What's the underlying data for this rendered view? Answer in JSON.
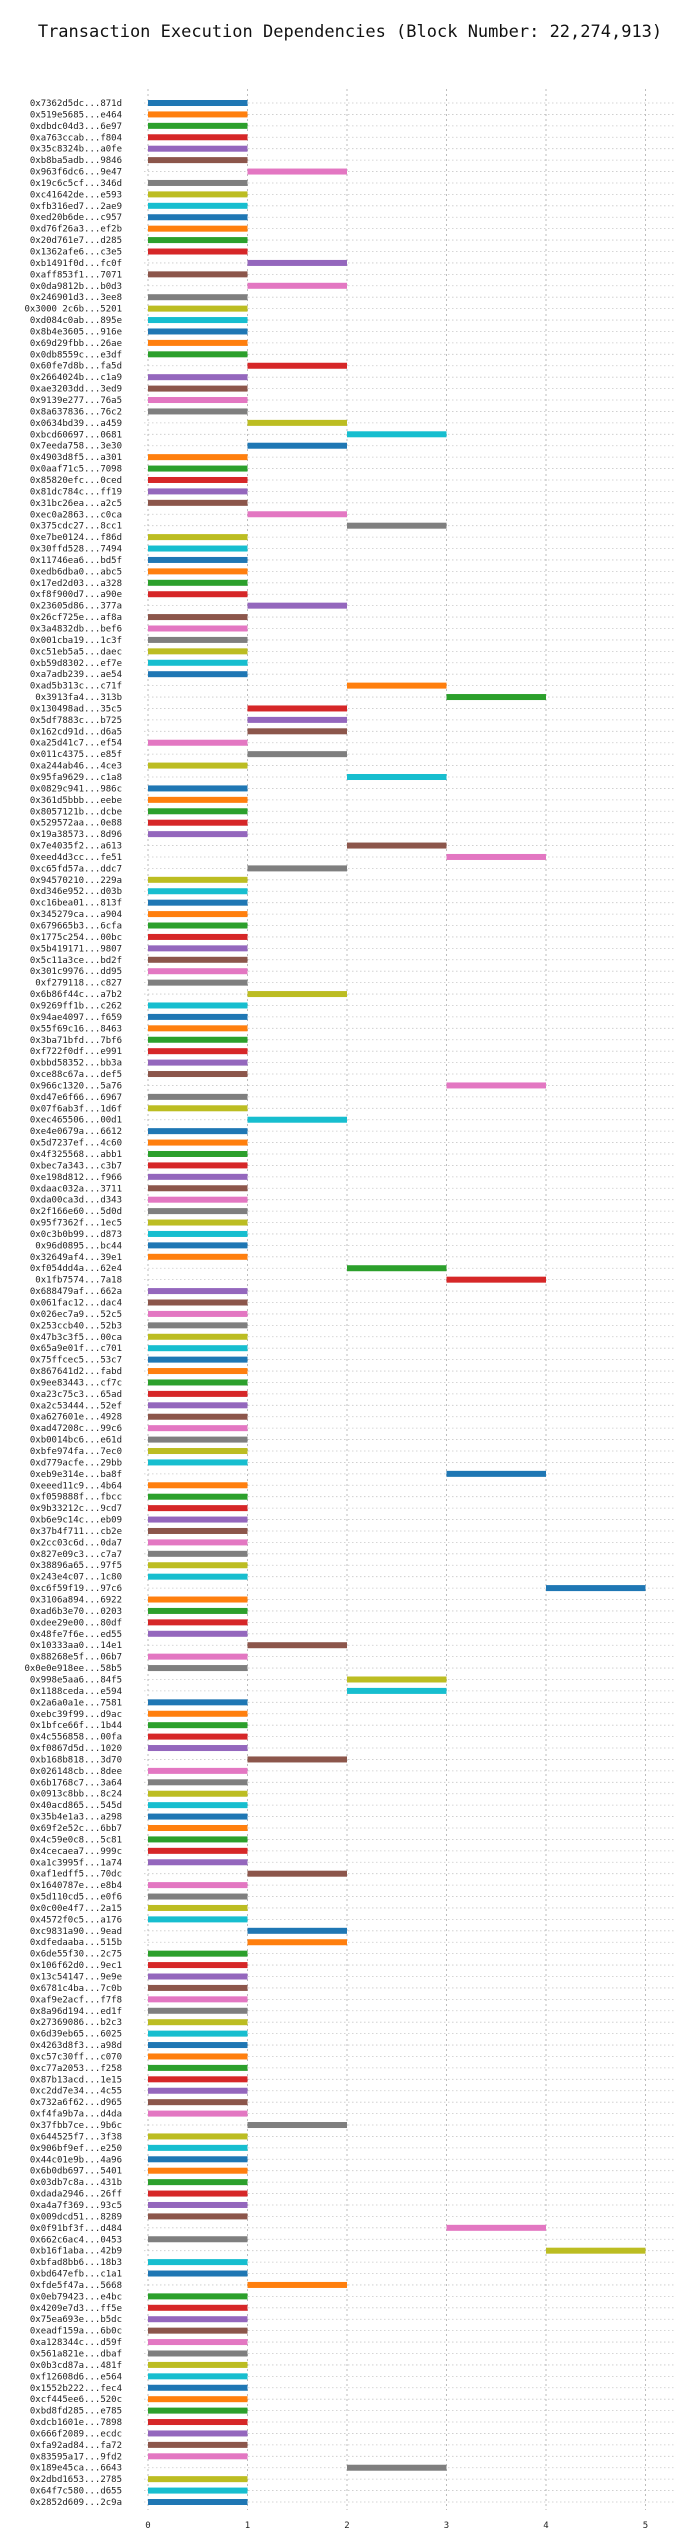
{
  "chart_data": {
    "type": "bar",
    "title": "Transaction Execution Dependencies (Block Number: 22,274,913)",
    "xlabel": "",
    "ylabel": "",
    "xlim": [
      0,
      5.3
    ],
    "x_ticks": [
      "0",
      "1",
      "2",
      "3",
      "4",
      "5"
    ],
    "grid": true,
    "palette": [
      "#1f77b4",
      "#ff7f0e",
      "#2ca02c",
      "#d62728",
      "#9467bd",
      "#8c564b",
      "#e377c2",
      "#7f7f7f",
      "#bcbd22",
      "#17becf"
    ],
    "transactions": [
      {
        "label": "0x7362d5dc...871d",
        "start": 0,
        "end": 1
      },
      {
        "label": "0x519e5685...e464",
        "start": 0,
        "end": 1
      },
      {
        "label": "0xdbdc04d3...6e97",
        "start": 0,
        "end": 1
      },
      {
        "label": "0xa763ccab...f804",
        "start": 0,
        "end": 1
      },
      {
        "label": "0x35c8324b...a0fe",
        "start": 0,
        "end": 1
      },
      {
        "label": "0xb8ba5adb...9846",
        "start": 0,
        "end": 1
      },
      {
        "label": "0x963f6dc6...9e47",
        "start": 1,
        "end": 2
      },
      {
        "label": "0x19c6c5cf...346d",
        "start": 0,
        "end": 1
      },
      {
        "label": "0xc41642de...e593",
        "start": 0,
        "end": 1
      },
      {
        "label": "0xfb316ed7...2ae9",
        "start": 0,
        "end": 1
      },
      {
        "label": "0xed20b6de...c957",
        "start": 0,
        "end": 1
      },
      {
        "label": "0xd76f26a3...ef2b",
        "start": 0,
        "end": 1
      },
      {
        "label": "0x20d761e7...d285",
        "start": 0,
        "end": 1
      },
      {
        "label": "0x1362afe6...c3e5",
        "start": 0,
        "end": 1
      },
      {
        "label": "0xb1491f0d...fc0f",
        "start": 1,
        "end": 2
      },
      {
        "label": "0xaff853f1...7071",
        "start": 0,
        "end": 1
      },
      {
        "label": "0x0da9812b...b0d3",
        "start": 1,
        "end": 2
      },
      {
        "label": "0x246901d3...3ee8",
        "start": 0,
        "end": 1
      },
      {
        "label": "0x3000 2c6b...5201",
        "start": 0,
        "end": 1
      },
      {
        "label": "0xd084c0ab...895e",
        "start": 0,
        "end": 1
      },
      {
        "label": "0x8b4e3605...916e",
        "start": 0,
        "end": 1
      },
      {
        "label": "0x69d29fbb...26ae",
        "start": 0,
        "end": 1
      },
      {
        "label": "0x0db8559c...e3df",
        "start": 0,
        "end": 1
      },
      {
        "label": "0x60fe7d8b...fa5d",
        "start": 1,
        "end": 2
      },
      {
        "label": "0x2664024b...c1a9",
        "start": 0,
        "end": 1
      },
      {
        "label": "0xae3203dd...3ed9",
        "start": 0,
        "end": 1
      },
      {
        "label": "0x9139e277...76a5",
        "start": 0,
        "end": 1
      },
      {
        "label": "0x8a637836...76c2",
        "start": 0,
        "end": 1
      },
      {
        "label": "0x0634bd39...a459",
        "start": 1,
        "end": 2
      },
      {
        "label": "0xbcd60697...0681",
        "start": 2,
        "end": 3
      },
      {
        "label": "0x7eeda758...3e30",
        "start": 1,
        "end": 2
      },
      {
        "label": "0x4903d8f5...a301",
        "start": 0,
        "end": 1
      },
      {
        "label": "0x0aaf71c5...7098",
        "start": 0,
        "end": 1
      },
      {
        "label": "0x85820efc...0ced",
        "start": 0,
        "end": 1
      },
      {
        "label": "0x81dc784c...ff19",
        "start": 0,
        "end": 1
      },
      {
        "label": "0x31bc26ea...a2c5",
        "start": 0,
        "end": 1
      },
      {
        "label": "0xec0a2863...c0ca",
        "start": 1,
        "end": 2
      },
      {
        "label": "0x375cdc27...8cc1",
        "start": 2,
        "end": 3
      },
      {
        "label": "0xe7be0124...f86d",
        "start": 0,
        "end": 1
      },
      {
        "label": "0x30ffd528...7494",
        "start": 0,
        "end": 1
      },
      {
        "label": "0x11746ea6...bd5f",
        "start": 0,
        "end": 1
      },
      {
        "label": "0xedb6dba0...abc5",
        "start": 0,
        "end": 1
      },
      {
        "label": "0x17ed2d03...a328",
        "start": 0,
        "end": 1
      },
      {
        "label": "0xf8f900d7...a90e",
        "start": 0,
        "end": 1
      },
      {
        "label": "0x23605d86...377a",
        "start": 1,
        "end": 2
      },
      {
        "label": "0x26cf725e...af8a",
        "start": 0,
        "end": 1
      },
      {
        "label": "0x3a4832db...bef6",
        "start": 0,
        "end": 1
      },
      {
        "label": "0x001cba19...1c3f",
        "start": 0,
        "end": 1
      },
      {
        "label": "0xc51eb5a5...daec",
        "start": 0,
        "end": 1
      },
      {
        "label": "0xb59d8302...ef7e",
        "start": 0,
        "end": 1
      },
      {
        "label": "0xa7adb239...ae54",
        "start": 0,
        "end": 1
      },
      {
        "label": "0xad5b313c...c71f",
        "start": 2,
        "end": 3
      },
      {
        "label": "0x3913fa4...313b",
        "start": 3,
        "end": 4
      },
      {
        "label": "0x130498ad...35c5",
        "start": 1,
        "end": 2
      },
      {
        "label": "0x5df7883c...b725",
        "start": 1,
        "end": 2
      },
      {
        "label": "0x162cd91d...d6a5",
        "start": 1,
        "end": 2
      },
      {
        "label": "0xa25d41c7...ef54",
        "start": 0,
        "end": 1
      },
      {
        "label": "0x011c4375...e85f",
        "start": 1,
        "end": 2
      },
      {
        "label": "0xa244ab46...4ce3",
        "start": 0,
        "end": 1
      },
      {
        "label": "0x95fa9629...c1a8",
        "start": 2,
        "end": 3
      },
      {
        "label": "0x0829c941...986c",
        "start": 0,
        "end": 1
      },
      {
        "label": "0x361d5bbb...eebe",
        "start": 0,
        "end": 1
      },
      {
        "label": "0x8057121b...dcbe",
        "start": 0,
        "end": 1
      },
      {
        "label": "0x529572aa...0e88",
        "start": 0,
        "end": 1
      },
      {
        "label": "0x19a38573...8d96",
        "start": 0,
        "end": 1
      },
      {
        "label": "0x7e4035f2...a613",
        "start": 2,
        "end": 3
      },
      {
        "label": "0xeed4d3cc...fe51",
        "start": 3,
        "end": 4
      },
      {
        "label": "0xc65fd57a...ddc7",
        "start": 1,
        "end": 2
      },
      {
        "label": "0x94570210...229a",
        "start": 0,
        "end": 1
      },
      {
        "label": "0xd346e952...d03b",
        "start": 0,
        "end": 1
      },
      {
        "label": "0xc16bea01...813f",
        "start": 0,
        "end": 1
      },
      {
        "label": "0x345279ca...a904",
        "start": 0,
        "end": 1
      },
      {
        "label": "0x679665b3...6cfa",
        "start": 0,
        "end": 1
      },
      {
        "label": "0x1775c254...00bc",
        "start": 0,
        "end": 1
      },
      {
        "label": "0x5b419171...9807",
        "start": 0,
        "end": 1
      },
      {
        "label": "0x5c11a3ce...bd2f",
        "start": 0,
        "end": 1
      },
      {
        "label": "0x301c9976...dd95",
        "start": 0,
        "end": 1
      },
      {
        "label": "0xf279118...c827",
        "start": 0,
        "end": 1
      },
      {
        "label": "0x6b86f44c...a7b2",
        "start": 1,
        "end": 2
      },
      {
        "label": "0x9269ff1b...c262",
        "start": 0,
        "end": 1
      },
      {
        "label": "0x94ae4097...f659",
        "start": 0,
        "end": 1
      },
      {
        "label": "0x55f69c16...8463",
        "start": 0,
        "end": 1
      },
      {
        "label": "0x3ba71bfd...7bf6",
        "start": 0,
        "end": 1
      },
      {
        "label": "0xf722f0df...e991",
        "start": 0,
        "end": 1
      },
      {
        "label": "0xbbd58352...bb3a",
        "start": 0,
        "end": 1
      },
      {
        "label": "0xce88c67a...def5",
        "start": 0,
        "end": 1
      },
      {
        "label": "0x966c1320...5a76",
        "start": 3,
        "end": 4
      },
      {
        "label": "0xd47e6f66...6967",
        "start": 0,
        "end": 1
      },
      {
        "label": "0x07f6ab3f...1d6f",
        "start": 0,
        "end": 1
      },
      {
        "label": "0xec465506...00d1",
        "start": 1,
        "end": 2
      },
      {
        "label": "0xe4e0679a...6612",
        "start": 0,
        "end": 1
      },
      {
        "label": "0x5d7237ef...4c60",
        "start": 0,
        "end": 1
      },
      {
        "label": "0x4f325568...abb1",
        "start": 0,
        "end": 1
      },
      {
        "label": "0xbec7a343...c3b7",
        "start": 0,
        "end": 1
      },
      {
        "label": "0xe198d812...f966",
        "start": 0,
        "end": 1
      },
      {
        "label": "0xdaac032a...3711",
        "start": 0,
        "end": 1
      },
      {
        "label": "0xda00ca3d...d343",
        "start": 0,
        "end": 1
      },
      {
        "label": "0x2f166e60...5d0d",
        "start": 0,
        "end": 1
      },
      {
        "label": "0x95f7362f...1ec5",
        "start": 0,
        "end": 1
      },
      {
        "label": "0x0c3b0b99...d873",
        "start": 0,
        "end": 1
      },
      {
        "label": "0x96d0895...bc44",
        "start": 0,
        "end": 1
      },
      {
        "label": "0x32649af4...39e1",
        "start": 0,
        "end": 1
      },
      {
        "label": "0xf054dd4a...62e4",
        "start": 2,
        "end": 3
      },
      {
        "label": "0x1fb7574...7a18",
        "start": 3,
        "end": 4
      },
      {
        "label": "0x688479af...662a",
        "start": 0,
        "end": 1
      },
      {
        "label": "0x061fac12...dac4",
        "start": 0,
        "end": 1
      },
      {
        "label": "0x026ec7a9...52c5",
        "start": 0,
        "end": 1
      },
      {
        "label": "0x253ccb40...52b3",
        "start": 0,
        "end": 1
      },
      {
        "label": "0x47b3c3f5...00ca",
        "start": 0,
        "end": 1
      },
      {
        "label": "0x65a9e01f...c701",
        "start": 0,
        "end": 1
      },
      {
        "label": "0x75ffcec5...53c7",
        "start": 0,
        "end": 1
      },
      {
        "label": "0x867641d2...fabd",
        "start": 0,
        "end": 1
      },
      {
        "label": "0x9ee83443...cf7c",
        "start": 0,
        "end": 1
      },
      {
        "label": "0xa23c75c3...65ad",
        "start": 0,
        "end": 1
      },
      {
        "label": "0xa2c53444...52ef",
        "start": 0,
        "end": 1
      },
      {
        "label": "0xa627601e...4928",
        "start": 0,
        "end": 1
      },
      {
        "label": "0xad47208c...99c6",
        "start": 0,
        "end": 1
      },
      {
        "label": "0xb0014bc6...e61d",
        "start": 0,
        "end": 1
      },
      {
        "label": "0xbfe974fa...7ec0",
        "start": 0,
        "end": 1
      },
      {
        "label": "0xd779acfe...29bb",
        "start": 0,
        "end": 1
      },
      {
        "label": "0xeb9e314e...ba8f",
        "start": 3,
        "end": 4
      },
      {
        "label": "0xeeed11c9...4b64",
        "start": 0,
        "end": 1
      },
      {
        "label": "0xf059888f...fbcc",
        "start": 0,
        "end": 1
      },
      {
        "label": "0x9b33212c...9cd7",
        "start": 0,
        "end": 1
      },
      {
        "label": "0xb6e9c14c...eb09",
        "start": 0,
        "end": 1
      },
      {
        "label": "0x37b4f711...cb2e",
        "start": 0,
        "end": 1
      },
      {
        "label": "0x2cc03c6d...0da7",
        "start": 0,
        "end": 1
      },
      {
        "label": "0x827e09c3...c7a7",
        "start": 0,
        "end": 1
      },
      {
        "label": "0x38896a65...97f5",
        "start": 0,
        "end": 1
      },
      {
        "label": "0x243e4c07...1c80",
        "start": 0,
        "end": 1
      },
      {
        "label": "0xc6f59f19...97c6",
        "start": 4,
        "end": 5
      },
      {
        "label": "0x3106a894...6922",
        "start": 0,
        "end": 1
      },
      {
        "label": "0xad6b3e70...0203",
        "start": 0,
        "end": 1
      },
      {
        "label": "0xdee29e00...80df",
        "start": 0,
        "end": 1
      },
      {
        "label": "0x48fe7f6e...ed55",
        "start": 0,
        "end": 1
      },
      {
        "label": "0x10333aa0...14e1",
        "start": 1,
        "end": 2
      },
      {
        "label": "0x88268e5f...06b7",
        "start": 0,
        "end": 1
      },
      {
        "label": "0x0e0e918ee...58b5",
        "start": 0,
        "end": 1
      },
      {
        "label": "0x998e5aa6...84f5",
        "start": 2,
        "end": 3
      },
      {
        "label": "0x1188ceda...e594",
        "start": 2,
        "end": 3
      },
      {
        "label": "0x2a6a0a1e...7581",
        "start": 0,
        "end": 1
      },
      {
        "label": "0xebc39f99...d9ac",
        "start": 0,
        "end": 1
      },
      {
        "label": "0x1bfce66f...1b44",
        "start": 0,
        "end": 1
      },
      {
        "label": "0x4c556858...00fa",
        "start": 0,
        "end": 1
      },
      {
        "label": "0xf0867d5d...1020",
        "start": 0,
        "end": 1
      },
      {
        "label": "0xb168b818...3d70",
        "start": 1,
        "end": 2
      },
      {
        "label": "0x026148cb...8dee",
        "start": 0,
        "end": 1
      },
      {
        "label": "0x6b1768c7...3a64",
        "start": 0,
        "end": 1
      },
      {
        "label": "0x0913c8bb...8c24",
        "start": 0,
        "end": 1
      },
      {
        "label": "0x40acd865...545d",
        "start": 0,
        "end": 1
      },
      {
        "label": "0x35b4e1a3...a298",
        "start": 0,
        "end": 1
      },
      {
        "label": "0x69f2e52c...6bb7",
        "start": 0,
        "end": 1
      },
      {
        "label": "0x4c59e0c8...5c81",
        "start": 0,
        "end": 1
      },
      {
        "label": "0x4cecaea7...999c",
        "start": 0,
        "end": 1
      },
      {
        "label": "0xa1c3995f...1a74",
        "start": 0,
        "end": 1
      },
      {
        "label": "0xaf1edff5...70dc",
        "start": 1,
        "end": 2
      },
      {
        "label": "0x1640787e...e8b4",
        "start": 0,
        "end": 1
      },
      {
        "label": "0x5d110cd5...e0f6",
        "start": 0,
        "end": 1
      },
      {
        "label": "0x0c00e4f7...2a15",
        "start": 0,
        "end": 1
      },
      {
        "label": "0x4572f0c5...a176",
        "start": 0,
        "end": 1
      },
      {
        "label": "0xc9831a90...9ead",
        "start": 1,
        "end": 2
      },
      {
        "label": "0xdfedaaba...515b",
        "start": 1,
        "end": 2
      },
      {
        "label": "0x6de55f30...2c75",
        "start": 0,
        "end": 1
      },
      {
        "label": "0x106f62d0...9ec1",
        "start": 0,
        "end": 1
      },
      {
        "label": "0x13c54147...9e9e",
        "start": 0,
        "end": 1
      },
      {
        "label": "0x6781c4ba...7c0b",
        "start": 0,
        "end": 1
      },
      {
        "label": "0xaf9e2acf...f7f8",
        "start": 0,
        "end": 1
      },
      {
        "label": "0x8a96d194...ed1f",
        "start": 0,
        "end": 1
      },
      {
        "label": "0x27369086...b2c3",
        "start": 0,
        "end": 1
      },
      {
        "label": "0x6d39eb65...6025",
        "start": 0,
        "end": 1
      },
      {
        "label": "0x4263d8f3...a98d",
        "start": 0,
        "end": 1
      },
      {
        "label": "0xc57c30ff...c070",
        "start": 0,
        "end": 1
      },
      {
        "label": "0xc77a2053...f258",
        "start": 0,
        "end": 1
      },
      {
        "label": "0x87b13acd...1e15",
        "start": 0,
        "end": 1
      },
      {
        "label": "0xc2dd7e34...4c55",
        "start": 0,
        "end": 1
      },
      {
        "label": "0x732a6f62...d965",
        "start": 0,
        "end": 1
      },
      {
        "label": "0xf4fa9b7a...d4da",
        "start": 0,
        "end": 1
      },
      {
        "label": "0x37fbb7ce...9b6c",
        "start": 1,
        "end": 2
      },
      {
        "label": "0x644525f7...3f38",
        "start": 0,
        "end": 1
      },
      {
        "label": "0x906bf9ef...e250",
        "start": 0,
        "end": 1
      },
      {
        "label": "0x44c01e9b...4a96",
        "start": 0,
        "end": 1
      },
      {
        "label": "0x6b0db697...5401",
        "start": 0,
        "end": 1
      },
      {
        "label": "0x03db7c8a...431b",
        "start": 0,
        "end": 1
      },
      {
        "label": "0xdada2946...26ff",
        "start": 0,
        "end": 1
      },
      {
        "label": "0xa4a7f369...93c5",
        "start": 0,
        "end": 1
      },
      {
        "label": "0x009dcd51...8289",
        "start": 0,
        "end": 1
      },
      {
        "label": "0x0f91bf3f...d484",
        "start": 3,
        "end": 4
      },
      {
        "label": "0x662c6ac4...0453",
        "start": 0,
        "end": 1
      },
      {
        "label": "0xb16f1aba...42b9",
        "start": 4,
        "end": 5
      },
      {
        "label": "0xbfad8bb6...18b3",
        "start": 0,
        "end": 1
      },
      {
        "label": "0xbd647efb...c1a1",
        "start": 0,
        "end": 1
      },
      {
        "label": "0xfde5f47a...5668",
        "start": 1,
        "end": 2
      },
      {
        "label": "0x0eb79423...e4bc",
        "start": 0,
        "end": 1
      },
      {
        "label": "0x4209e7d3...ff5e",
        "start": 0,
        "end": 1
      },
      {
        "label": "0x75ea693e...b5dc",
        "start": 0,
        "end": 1
      },
      {
        "label": "0xeadf159a...6b0c",
        "start": 0,
        "end": 1
      },
      {
        "label": "0xa128344c...d59f",
        "start": 0,
        "end": 1
      },
      {
        "label": "0x561a821e...dbaf",
        "start": 0,
        "end": 1
      },
      {
        "label": "0x0b3cd87a...481f",
        "start": 0,
        "end": 1
      },
      {
        "label": "0xf12608d6...e564",
        "start": 0,
        "end": 1
      },
      {
        "label": "0x1552b222...fec4",
        "start": 0,
        "end": 1
      },
      {
        "label": "0xcf445ee6...520c",
        "start": 0,
        "end": 1
      },
      {
        "label": "0xbd8fd285...e785",
        "start": 0,
        "end": 1
      },
      {
        "label": "0xdcb1601e...7898",
        "start": 0,
        "end": 1
      },
      {
        "label": "0x666f2089...ecdc",
        "start": 0,
        "end": 1
      },
      {
        "label": "0xfa92ad84...fa72",
        "start": 0,
        "end": 1
      },
      {
        "label": "0x83595a17...9fd2",
        "start": 0,
        "end": 1
      },
      {
        "label": "0x189e45ca...6643",
        "start": 2,
        "end": 3
      },
      {
        "label": "0x2dbd1653...2785",
        "start": 0,
        "end": 1
      },
      {
        "label": "0x64f7c580...d655",
        "start": 0,
        "end": 1
      },
      {
        "label": "0x2852d609...2c9a",
        "start": 0,
        "end": 1
      }
    ]
  }
}
